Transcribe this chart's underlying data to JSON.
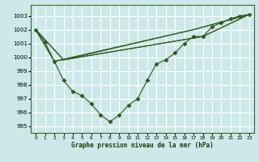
{
  "xlabel": "Graphe pression niveau de la mer (hPa)",
  "bg_color": "#cce8e8",
  "grid_color": "#ffffff",
  "line_color": "#2d5a1b",
  "ylim": [
    994.5,
    1003.8
  ],
  "xlim": [
    -0.5,
    23.5
  ],
  "yticks": [
    995,
    996,
    997,
    998,
    999,
    1000,
    1001,
    1002,
    1003
  ],
  "xticks": [
    0,
    1,
    2,
    3,
    4,
    5,
    6,
    7,
    8,
    9,
    10,
    11,
    12,
    13,
    14,
    15,
    16,
    17,
    18,
    19,
    20,
    21,
    22,
    23
  ],
  "main_x": [
    0,
    1,
    2,
    3,
    4,
    5,
    6,
    7,
    8,
    9,
    10,
    11,
    12,
    13,
    14,
    15,
    16,
    17,
    18,
    19,
    20,
    21,
    22,
    23
  ],
  "main_y": [
    1002.0,
    1001.1,
    999.7,
    998.3,
    997.5,
    997.2,
    996.6,
    995.8,
    995.3,
    995.8,
    996.5,
    997.0,
    998.3,
    999.5,
    999.8,
    1000.3,
    1001.0,
    1001.5,
    1001.5,
    1002.2,
    1002.5,
    1002.8,
    1003.0,
    1003.1
  ],
  "trend1_x": [
    0,
    2,
    17,
    23
  ],
  "trend1_y": [
    1002.0,
    999.7,
    1002.0,
    1003.1
  ],
  "trend2_x": [
    0,
    3,
    17,
    23
  ],
  "trend2_y": [
    1002.0,
    999.8,
    1002.0,
    1003.1
  ],
  "trend3_x": [
    0,
    3,
    18,
    23
  ],
  "trend3_y": [
    1002.0,
    999.8,
    1001.5,
    1003.1
  ],
  "trend4_x": [
    0,
    2,
    18,
    23
  ],
  "trend4_y": [
    1002.0,
    999.7,
    1001.5,
    1003.1
  ]
}
